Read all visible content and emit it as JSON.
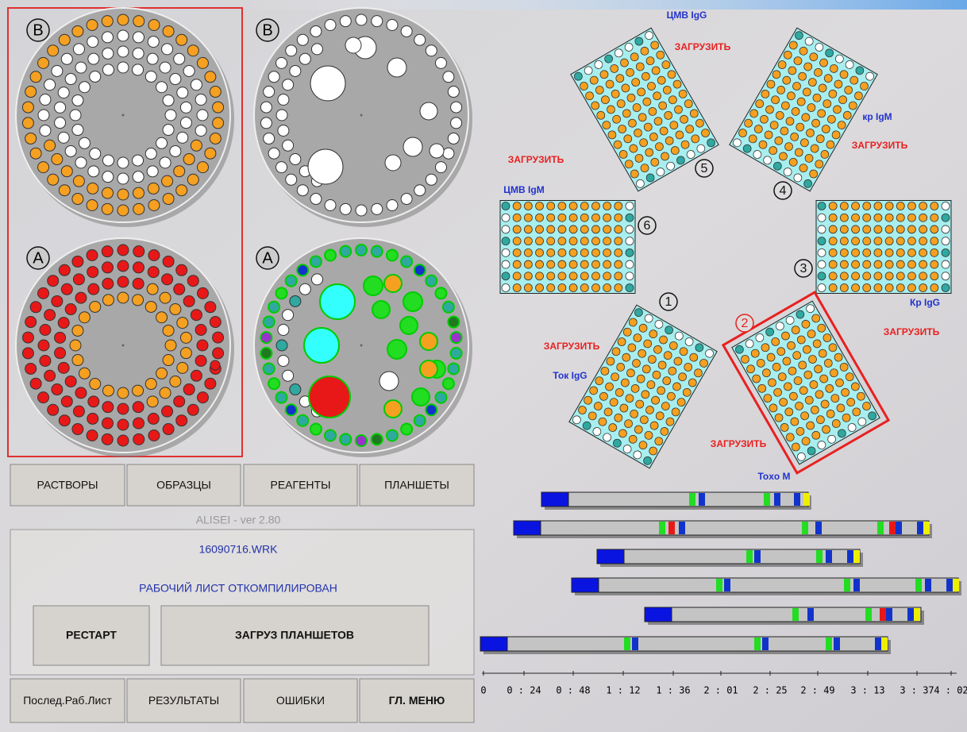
{
  "rotors": [
    {
      "label": "B"
    },
    {
      "label": "A"
    },
    {
      "label": "B"
    },
    {
      "label": "A"
    }
  ],
  "plates": [
    {
      "number": "5",
      "name": "ЦМВ IgG",
      "action": "ЗАГРУЗИТЬ"
    },
    {
      "number": "4",
      "name": "кр IgM",
      "action": "ЗАГРУЗИТЬ"
    },
    {
      "number": "6",
      "name": "ЦМВ IgM",
      "action": "ЗАГРУЗИТЬ"
    },
    {
      "number": "3",
      "name": "Кр IgG",
      "action": "ЗАГРУЗИТЬ"
    },
    {
      "number": "1",
      "name": "Ток IgG",
      "action": "ЗАГРУЗИТЬ"
    },
    {
      "number": "2",
      "name": "Toxo M",
      "action": "ЗАГРУЗИТЬ"
    }
  ],
  "top_buttons": [
    "РАСТВОРЫ",
    "ОБРАЗЦЫ",
    "РЕАГЕНТЫ",
    "ПЛАНШЕТЫ"
  ],
  "version": "ALISEI - ver 2.80",
  "status": {
    "file": "16090716.WRK",
    "message": "РАБОЧИЙ ЛИСТ ОТКОМПИЛИРОВАН",
    "buttons": [
      "РЕСТАРТ",
      "ЗАГРУЗ ПЛАНШЕТОВ"
    ]
  },
  "bottom_buttons": [
    "Послед.Раб.Лист",
    "РЕЗУЛЬТАТЫ",
    "ОШИБКИ",
    "ГЛ. МЕНЮ"
  ],
  "timeline": {
    "axis_labels": [
      "0",
      "0 : 24",
      "0 : 48",
      "1 : 12",
      "1 : 36",
      "2 : 01",
      "2 : 25",
      "2 : 49",
      "3 : 13",
      "3 : 37",
      "4 : 02"
    ]
  }
}
